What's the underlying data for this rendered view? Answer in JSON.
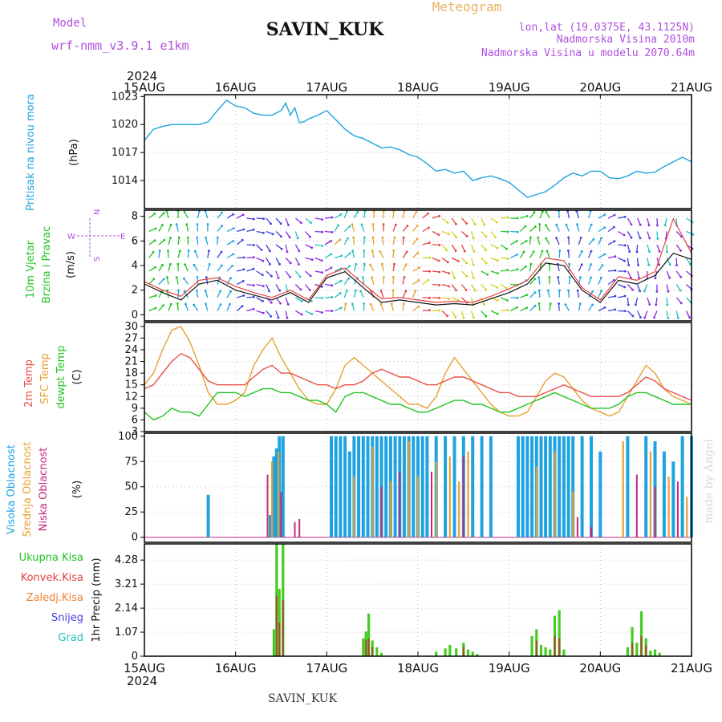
{
  "header": {
    "model_label": "Model",
    "model_name": "wrf-nmm_v3.9.1 e1km",
    "station": "SAVIN_KUK",
    "title": "Meteogram",
    "lonlat": "lon,lat (19.0375E, 43.1125N)",
    "elevation": "Nadmorska Visina 2010m",
    "model_elevation": "Nadmorska Visina u modelu 2070.64m",
    "year": "2024",
    "footer_station": "SAVIN_KUK",
    "watermark": "made by Angel"
  },
  "colors": {
    "pressure": "#1fa3e0",
    "temp2m": "#e8504a",
    "sfc_temp": "#e8a030",
    "dewpt": "#22c422",
    "high_cloud": "#1fa3e0",
    "mid_cloud": "#e8a030",
    "low_cloud": "#c8287a",
    "total_rain": "#44cc22",
    "conv_rain": "#e84040",
    "frz_rain": "#f08030",
    "snow": "#4040e0",
    "hail": "#22c0c0",
    "wind_label": "#22c422",
    "compass": "#b050e0"
  },
  "chart_data": [
    {
      "type": "line",
      "panel": "pressure",
      "ylabel_1": "Pritisak na nivou mora",
      "ylabel_2": "(hPa)",
      "x_ticks": [
        "15AUG",
        "16AUG",
        "17AUG",
        "18AUG",
        "19AUG",
        "20AUG",
        "21AUG"
      ],
      "ylim": [
        1011,
        1023.2
      ],
      "yticks": [
        "1014",
        "1017",
        "1020",
        "1023"
      ],
      "x_days": [
        0,
        0.1,
        0.2,
        0.3,
        0.45,
        0.6,
        0.7,
        0.8,
        0.9,
        1.0,
        1.1,
        1.2,
        1.3,
        1.4,
        1.5,
        1.55,
        1.6,
        1.65,
        1.7,
        1.75,
        1.8,
        1.9,
        2.0,
        2.1,
        2.2,
        2.3,
        2.4,
        2.5,
        2.6,
        2.7,
        2.8,
        2.9,
        3.0,
        3.1,
        3.2,
        3.3,
        3.4,
        3.5,
        3.6,
        3.7,
        3.8,
        3.9,
        4.0,
        4.1,
        4.2,
        4.3,
        4.4,
        4.5,
        4.6,
        4.7,
        4.8,
        4.9,
        5.0,
        5.1,
        5.2,
        5.3,
        5.4,
        5.5,
        5.6,
        5.7,
        5.8,
        5.9,
        6.0
      ],
      "series": [
        {
          "values": [
            1018.3,
            1019.5,
            1019.8,
            1020.0,
            1020.0,
            1020.0,
            1020.3,
            1021.5,
            1022.6,
            1022.0,
            1021.8,
            1021.2,
            1021.0,
            1021.0,
            1021.5,
            1022.3,
            1021.0,
            1021.8,
            1020.2,
            1020.3,
            1020.6,
            1021.0,
            1021.5,
            1020.5,
            1019.5,
            1018.8,
            1018.5,
            1018.0,
            1017.5,
            1017.6,
            1017.3,
            1016.8,
            1016.5,
            1015.8,
            1015.0,
            1015.2,
            1014.8,
            1015.0,
            1014.0,
            1014.3,
            1014.5,
            1014.2,
            1013.8,
            1013.0,
            1012.2,
            1012.5,
            1012.8,
            1013.5,
            1014.3,
            1014.8,
            1014.5,
            1015.0,
            1015.0,
            1014.3,
            1014.2,
            1014.5,
            1015.0,
            1014.8,
            1014.9,
            1015.5,
            1016.0,
            1016.5,
            1016.0
          ]
        }
      ]
    },
    {
      "type": "line",
      "panel": "wind",
      "ylabel_1": "10m Vjetar",
      "ylabel_1b": "Brzina i Pravac",
      "ylabel_2": "(m/s)",
      "compass": {
        "n": "N",
        "w": "W",
        "e": "E",
        "s": "S"
      },
      "ylim": [
        -0.5,
        8.5
      ],
      "yticks": [
        "0",
        "2",
        "4",
        "6",
        "8"
      ],
      "x_days": [
        0,
        0.2,
        0.4,
        0.6,
        0.8,
        1.0,
        1.2,
        1.4,
        1.6,
        1.8,
        2.0,
        2.2,
        2.4,
        2.6,
        2.8,
        3.0,
        3.2,
        3.4,
        3.6,
        3.8,
        4.0,
        4.2,
        4.4,
        4.6,
        4.8,
        5.0,
        5.2,
        5.4,
        5.6,
        5.8,
        6.0
      ],
      "series": [
        {
          "values": [
            2.5,
            1.8,
            1.2,
            2.5,
            2.8,
            2.0,
            1.6,
            1.2,
            1.8,
            1.0,
            3.0,
            3.5,
            2.2,
            1.0,
            1.2,
            1.0,
            0.8,
            0.9,
            0.8,
            1.3,
            1.8,
            2.5,
            4.2,
            4.0,
            2.0,
            1.0,
            2.8,
            2.5,
            3.2,
            5.0,
            4.5
          ]
        },
        {
          "values": [
            2.7,
            2.0,
            1.5,
            2.8,
            3.0,
            2.3,
            1.8,
            1.4,
            2.0,
            1.2,
            3.2,
            3.8,
            2.5,
            1.3,
            1.4,
            1.2,
            1.0,
            1.1,
            1.0,
            1.5,
            2.1,
            2.8,
            4.6,
            4.4,
            2.2,
            1.2,
            3.1,
            2.8,
            3.5,
            7.8,
            5.0
          ]
        }
      ]
    },
    {
      "type": "line",
      "panel": "temperature",
      "ylabel_1": "2m Temp",
      "ylabel_1b": "SFC Temp",
      "ylabel_1c": "dewpt Temp",
      "ylabel_2": "(C)",
      "ylim": [
        3,
        31
      ],
      "yticks": [
        "3",
        "6",
        "9",
        "12",
        "15",
        "18",
        "21",
        "24",
        "27",
        "30"
      ],
      "x_days": [
        0,
        0.1,
        0.2,
        0.3,
        0.4,
        0.5,
        0.6,
        0.7,
        0.8,
        0.9,
        1.0,
        1.1,
        1.2,
        1.3,
        1.4,
        1.5,
        1.6,
        1.7,
        1.8,
        1.9,
        2.0,
        2.1,
        2.2,
        2.3,
        2.4,
        2.5,
        2.6,
        2.7,
        2.8,
        2.9,
        3.0,
        3.1,
        3.2,
        3.3,
        3.4,
        3.5,
        3.6,
        3.7,
        3.8,
        3.9,
        4.0,
        4.1,
        4.2,
        4.3,
        4.4,
        4.5,
        4.6,
        4.7,
        4.8,
        4.9,
        5.0,
        5.1,
        5.2,
        5.3,
        5.4,
        5.5,
        5.6,
        5.7,
        5.8,
        5.9,
        6.0
      ],
      "series": [
        {
          "values": [
            14,
            15,
            18,
            21,
            23,
            22,
            19,
            16,
            15,
            15,
            15,
            15,
            17,
            19,
            20,
            18,
            18,
            17,
            16,
            15,
            15,
            14,
            15,
            15,
            16,
            18,
            19,
            18,
            17,
            17,
            16,
            15,
            15,
            16,
            17,
            17,
            16,
            15,
            14,
            13,
            13,
            12,
            12,
            12,
            13,
            14,
            15,
            14,
            13,
            12,
            12,
            12,
            12,
            13,
            15,
            17,
            16,
            14,
            13,
            12,
            11
          ]
        },
        {
          "values": [
            15,
            18,
            24,
            29,
            30,
            26,
            20,
            13,
            10,
            10,
            11,
            13,
            20,
            24,
            27,
            22,
            18,
            14,
            11,
            10,
            10,
            14,
            20,
            22,
            20,
            18,
            16,
            14,
            12,
            10,
            10,
            9,
            12,
            18,
            22,
            19,
            16,
            13,
            10,
            8,
            7,
            7,
            8,
            12,
            16,
            18,
            17,
            14,
            11,
            9,
            8,
            7,
            8,
            12,
            16,
            20,
            18,
            14,
            12,
            11,
            10
          ]
        },
        {
          "values": [
            8,
            6,
            7,
            9,
            8,
            8,
            7,
            10,
            13,
            13,
            13,
            12,
            13,
            14,
            14,
            13,
            13,
            12,
            11,
            11,
            10,
            8,
            12,
            13,
            13,
            12,
            11,
            10,
            10,
            9,
            8,
            8,
            9,
            10,
            11,
            11,
            10,
            10,
            9,
            8,
            8,
            9,
            10,
            11,
            12,
            13,
            12,
            11,
            10,
            9,
            9,
            9,
            10,
            12,
            13,
            13,
            12,
            11,
            10,
            10,
            10
          ]
        }
      ]
    },
    {
      "type": "bar",
      "panel": "clouds",
      "ylabel_1": "Visoka Oblacnost",
      "ylabel_1b": "Srednja Oblacnost",
      "ylabel_1c": "Niska Oblacnost",
      "ylabel_2": "(%)",
      "ylim": [
        -5,
        103
      ],
      "yticks": [
        "0",
        "25",
        "50",
        "75",
        "100"
      ],
      "series": [
        {
          "x_days": [
            0.7,
            1.38,
            1.42,
            1.45,
            1.48,
            1.52,
            2.05,
            2.1,
            2.15,
            2.2,
            2.25,
            2.3,
            2.35,
            2.4,
            2.45,
            2.5,
            2.55,
            2.6,
            2.65,
            2.7,
            2.75,
            2.8,
            2.85,
            2.9,
            2.95,
            3.0,
            3.05,
            3.1,
            3.2,
            3.3,
            3.4,
            3.5,
            3.6,
            3.7,
            3.8,
            4.1,
            4.15,
            4.2,
            4.25,
            4.3,
            4.35,
            4.4,
            4.45,
            4.5,
            4.55,
            4.6,
            4.65,
            4.7,
            4.8,
            4.9,
            5.0,
            5.3,
            5.5,
            5.6,
            5.7,
            5.8,
            5.9,
            6.0
          ],
          "values": [
            42,
            22,
            80,
            88,
            100,
            100,
            100,
            100,
            100,
            100,
            85,
            100,
            100,
            100,
            100,
            100,
            100,
            100,
            100,
            100,
            100,
            100,
            100,
            100,
            100,
            100,
            100,
            100,
            100,
            100,
            100,
            100,
            100,
            100,
            100,
            100,
            100,
            100,
            100,
            100,
            100,
            100,
            100,
            100,
            100,
            100,
            100,
            100,
            100,
            100,
            85,
            100,
            100,
            95,
            85,
            75,
            100,
            100
          ]
        },
        {
          "x_days": [
            1.4,
            1.47,
            2.3,
            2.5,
            2.7,
            2.9,
            3.0,
            3.2,
            3.35,
            3.45,
            3.55,
            4.3,
            4.5,
            4.7,
            5.25,
            5.55,
            5.75,
            5.95
          ],
          "values": [
            75,
            85,
            60,
            90,
            55,
            95,
            60,
            75,
            80,
            55,
            85,
            70,
            85,
            45,
            95,
            85,
            60,
            40
          ]
        },
        {
          "x_days": [
            1.35,
            1.5,
            1.65,
            1.7,
            2.6,
            2.8,
            3.15,
            3.5,
            4.75,
            4.9,
            5.4,
            5.6,
            5.85
          ],
          "values": [
            62,
            45,
            15,
            18,
            50,
            65,
            65,
            80,
            20,
            10,
            62,
            50,
            55
          ]
        }
      ]
    },
    {
      "type": "bar",
      "panel": "precip",
      "legend": [
        "Ukupna Kisa",
        "Konvek.Kisa",
        "Zaledj.Kisa",
        "Snijeg",
        "Grad"
      ],
      "ylabel_2": "1hr Precip (mm)",
      "ylim": [
        0,
        5.0
      ],
      "yticks": [
        "0",
        "1.07",
        "2.14",
        "3.21",
        "4.28"
      ],
      "x_ticks_bottom": [
        "15AUG",
        "16AUG",
        "17AUG",
        "18AUG",
        "19AUG",
        "20AUG",
        "21AUG"
      ],
      "series": [
        {
          "x_days": [
            1.42,
            1.45,
            1.48,
            1.52,
            2.4,
            2.43,
            2.46,
            2.5,
            2.55,
            2.6,
            3.2,
            3.3,
            3.35,
            3.42,
            3.5,
            3.55,
            3.6,
            3.65,
            4.25,
            4.3,
            4.35,
            4.4,
            4.45,
            4.5,
            4.55,
            4.6,
            5.3,
            5.35,
            5.4,
            5.45,
            5.5,
            5.55,
            5.6,
            5.65
          ],
          "values": [
            1.2,
            5.0,
            3.0,
            5.0,
            0.8,
            1.1,
            1.9,
            0.7,
            0.4,
            0.15,
            0.2,
            0.35,
            0.5,
            0.35,
            0.6,
            0.3,
            0.2,
            0.1,
            0.9,
            1.2,
            0.5,
            0.4,
            0.3,
            1.8,
            2.05,
            0.3,
            0.4,
            1.3,
            0.6,
            2.0,
            0.8,
            0.25,
            0.3,
            0.15
          ]
        },
        {
          "x_days": [
            1.45,
            1.48,
            1.52,
            2.43,
            2.46,
            2.5,
            3.5,
            4.3,
            4.5,
            4.55,
            5.35,
            5.45,
            5.5
          ],
          "values": [
            2.7,
            1.5,
            2.5,
            0.7,
            0.8,
            0.4,
            0.4,
            0.7,
            0.9,
            0.8,
            0.6,
            0.9,
            0.5
          ]
        }
      ]
    }
  ]
}
